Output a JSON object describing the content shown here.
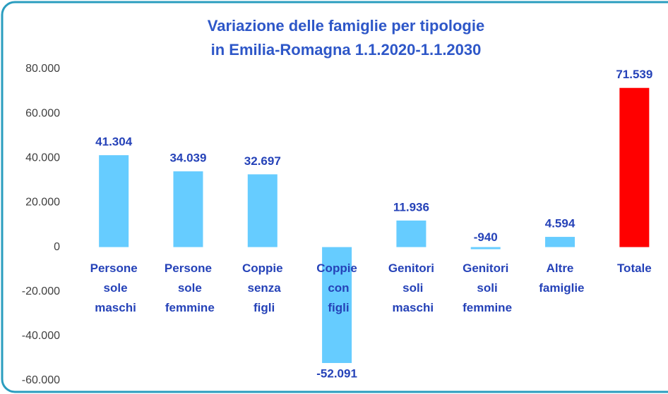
{
  "chart_data": {
    "type": "bar",
    "title": "Variazione delle famiglie per tipologie",
    "subtitle": "in Emilia-Romagna 1.1.2020-1.1.2030",
    "categories": [
      "Persone sole maschi",
      "Persone sole femmine",
      "Coppie senza figli",
      "Coppie con figli",
      "Genitori soli maschi",
      "Genitori soli femmine",
      "Altre famiglie",
      "Totale"
    ],
    "values": [
      41304,
      34039,
      32697,
      -52091,
      11936,
      -940,
      4594,
      71539
    ],
    "value_labels": [
      "41.304",
      "34.039",
      "32.697",
      "-52.091",
      "11.936",
      "-940",
      "4.594",
      "71.539"
    ],
    "colors": [
      "#66ccff",
      "#66ccff",
      "#66ccff",
      "#66ccff",
      "#66ccff",
      "#66ccff",
      "#66ccff",
      "#ff0000"
    ],
    "ylim": [
      -60000,
      80000
    ],
    "yticks": [
      {
        "value": -60000,
        "label": "-60.000"
      },
      {
        "value": -40000,
        "label": "-40.000"
      },
      {
        "value": -20000,
        "label": "-20.000"
      },
      0,
      {
        "value": 20000,
        "label": "20.000"
      },
      {
        "value": 40000,
        "label": "40.000"
      },
      {
        "value": 60000,
        "label": "60.000"
      },
      {
        "value": 80000,
        "label": "80.000"
      }
    ],
    "grid": false
  }
}
